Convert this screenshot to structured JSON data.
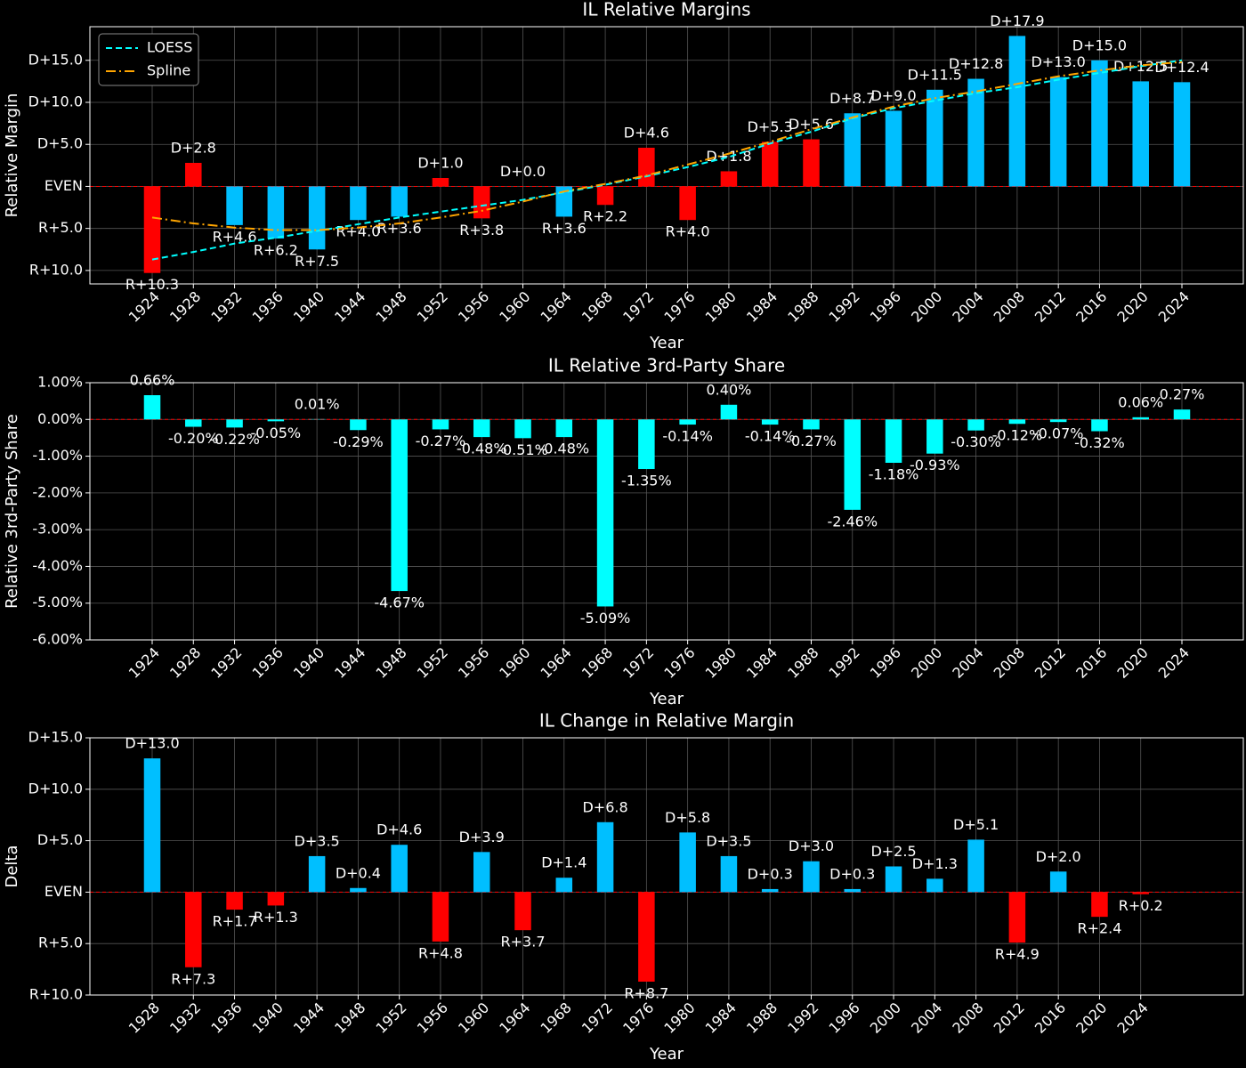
{
  "chart_data": [
    {
      "type": "bar",
      "title": "IL Relative Margins",
      "xlabel": "Year",
      "ylabel": "Relative Margin",
      "categories": [
        1924,
        1928,
        1932,
        1936,
        1940,
        1944,
        1948,
        1952,
        1956,
        1960,
        1964,
        1968,
        1972,
        1976,
        1980,
        1984,
        1988,
        1992,
        1996,
        2000,
        2004,
        2008,
        2012,
        2016,
        2020,
        2024
      ],
      "values": [
        -10.3,
        2.8,
        -4.6,
        -6.2,
        -7.5,
        -4.0,
        -3.6,
        1.0,
        -3.8,
        0.0,
        -3.6,
        -2.2,
        4.6,
        -4.0,
        1.8,
        5.3,
        5.6,
        8.7,
        9.0,
        11.5,
        12.8,
        17.9,
        13.0,
        15.0,
        12.5,
        12.4
      ],
      "value_labels": [
        "R+10.3",
        "D+2.8",
        "R+4.6",
        "R+6.2",
        "R+7.5",
        "R+4.0",
        "R+3.6",
        "D+1.0",
        "R+3.8",
        "D+0.0",
        "R+3.6",
        "R+2.2",
        "D+4.6",
        "R+4.0",
        "D+1.8",
        "D+5.3",
        "D+5.6",
        "D+8.7",
        "D+9.0",
        "D+11.5",
        "D+12.8",
        "D+17.9",
        "D+13.0",
        "D+15.0",
        "D+12.5",
        "D+12.4"
      ],
      "colors": [
        "#ff0000",
        "#ff0000",
        "#00bfff",
        "#00bfff",
        "#00bfff",
        "#00bfff",
        "#00bfff",
        "#ff0000",
        "#ff0000",
        "#ff0000",
        "#00bfff",
        "#ff0000",
        "#ff0000",
        "#ff0000",
        "#ff0000",
        "#ff0000",
        "#ff0000",
        "#00bfff",
        "#00bfff",
        "#00bfff",
        "#00bfff",
        "#00bfff",
        "#00bfff",
        "#00bfff",
        "#00bfff",
        "#00bfff"
      ],
      "ylim": [
        -11.6,
        19.0
      ],
      "yticks": [
        {
          "value": -10,
          "label": "R+10.0"
        },
        {
          "value": -5,
          "label": "R+5.0"
        },
        {
          "value": 0,
          "label": "EVEN"
        },
        {
          "value": 5,
          "label": "D+5.0"
        },
        {
          "value": 10,
          "label": "D+10.0"
        },
        {
          "value": 15,
          "label": "D+15.0"
        }
      ],
      "grid": true,
      "legend": "upper left",
      "series": [
        {
          "name": "LOESS",
          "color": "#00ffff",
          "style": "dashed",
          "values": [
            -8.7,
            -7.8,
            -6.8,
            -6.1,
            -5.3,
            -4.5,
            -3.7,
            -3.0,
            -2.3,
            -1.6,
            -0.7,
            0.2,
            1.2,
            2.3,
            3.5,
            5.1,
            6.5,
            8.1,
            9.3,
            10.2,
            11.1,
            11.8,
            12.7,
            13.5,
            14.3,
            15.0
          ]
        },
        {
          "name": "Spline",
          "color": "#ffa500",
          "style": "dashdot",
          "values": [
            -3.7,
            -4.4,
            -4.9,
            -5.2,
            -5.2,
            -4.9,
            -4.4,
            -3.7,
            -2.9,
            -1.8,
            -0.6,
            0.3,
            1.3,
            2.6,
            3.9,
            5.3,
            6.8,
            8.2,
            9.5,
            10.5,
            11.3,
            12.2,
            13.1,
            13.8,
            14.4,
            14.8
          ]
        }
      ]
    },
    {
      "type": "bar",
      "title": "IL Relative 3rd-Party Share",
      "xlabel": "Year",
      "ylabel": "Relative 3rd-Party Share",
      "categories": [
        1924,
        1928,
        1932,
        1936,
        1940,
        1944,
        1948,
        1952,
        1956,
        1960,
        1964,
        1968,
        1972,
        1976,
        1980,
        1984,
        1988,
        1992,
        1996,
        2000,
        2004,
        2008,
        2012,
        2016,
        2020,
        2024
      ],
      "values": [
        0.66,
        -0.2,
        -0.22,
        -0.05,
        0.01,
        -0.29,
        -4.67,
        -0.27,
        -0.48,
        -0.51,
        -0.48,
        -5.09,
        -1.35,
        -0.14,
        0.4,
        -0.14,
        -0.27,
        -2.46,
        -1.18,
        -0.93,
        -0.3,
        -0.12,
        -0.07,
        -0.32,
        0.06,
        0.27
      ],
      "value_labels": [
        "0.66%",
        "-0.20%",
        "-0.22%",
        "-0.05%",
        "0.01%",
        "-0.29%",
        "-4.67%",
        "-0.27%",
        "-0.48%",
        "-0.51%",
        "-0.48%",
        "-5.09%",
        "-1.35%",
        "-0.14%",
        "0.40%",
        "-0.14%",
        "-0.27%",
        "-2.46%",
        "-1.18%",
        "-0.93%",
        "-0.30%",
        "-0.12%",
        "-0.07%",
        "-0.32%",
        "0.06%",
        "0.27%"
      ],
      "color": "#00ffff",
      "ylim": [
        -6,
        1
      ],
      "yticks": [
        {
          "value": -6,
          "label": "-6.00%"
        },
        {
          "value": -5,
          "label": "-5.00%"
        },
        {
          "value": -4,
          "label": "-4.00%"
        },
        {
          "value": -3,
          "label": "-3.00%"
        },
        {
          "value": -2,
          "label": "-2.00%"
        },
        {
          "value": -1,
          "label": "-1.00%"
        },
        {
          "value": 0,
          "label": "0.00%"
        },
        {
          "value": 1,
          "label": "1.00%"
        }
      ],
      "grid": true
    },
    {
      "type": "bar",
      "title": "IL Change in Relative Margin",
      "xlabel": "Year",
      "ylabel": "Delta",
      "categories": [
        1928,
        1932,
        1936,
        1940,
        1944,
        1948,
        1952,
        1956,
        1960,
        1964,
        1968,
        1972,
        1976,
        1980,
        1984,
        1988,
        1992,
        1996,
        2000,
        2004,
        2008,
        2012,
        2016,
        2020,
        2024
      ],
      "values": [
        13.0,
        -7.3,
        -1.7,
        -1.3,
        3.5,
        0.4,
        4.6,
        -4.8,
        3.9,
        -3.7,
        1.4,
        6.8,
        -8.7,
        5.8,
        3.5,
        0.3,
        3.0,
        0.3,
        2.5,
        1.3,
        5.1,
        -4.9,
        2.0,
        -2.4,
        -0.2
      ],
      "value_labels": [
        "D+13.0",
        "R+7.3",
        "R+1.7",
        "R+1.3",
        "D+3.5",
        "D+0.4",
        "D+4.6",
        "R+4.8",
        "D+3.9",
        "R+3.7",
        "D+1.4",
        "D+6.8",
        "R+8.7",
        "D+5.8",
        "D+3.5",
        "D+0.3",
        "D+3.0",
        "D+0.3",
        "D+2.5",
        "D+1.3",
        "D+5.1",
        "R+4.9",
        "D+2.0",
        "R+2.4",
        "R+0.2"
      ],
      "colors": [
        "#00bfff",
        "#ff0000",
        "#ff0000",
        "#ff0000",
        "#00bfff",
        "#00bfff",
        "#00bfff",
        "#ff0000",
        "#00bfff",
        "#ff0000",
        "#00bfff",
        "#00bfff",
        "#ff0000",
        "#00bfff",
        "#00bfff",
        "#00bfff",
        "#00bfff",
        "#00bfff",
        "#00bfff",
        "#00bfff",
        "#00bfff",
        "#ff0000",
        "#00bfff",
        "#ff0000",
        "#ff0000"
      ],
      "ylim": [
        -10,
        15
      ],
      "yticks": [
        {
          "value": -10,
          "label": "R+10.0"
        },
        {
          "value": -5,
          "label": "R+5.0"
        },
        {
          "value": 0,
          "label": "EVEN"
        },
        {
          "value": 5,
          "label": "D+5.0"
        },
        {
          "value": 10,
          "label": "D+10.0"
        },
        {
          "value": 15,
          "label": "D+15.0"
        }
      ],
      "grid": true
    }
  ]
}
